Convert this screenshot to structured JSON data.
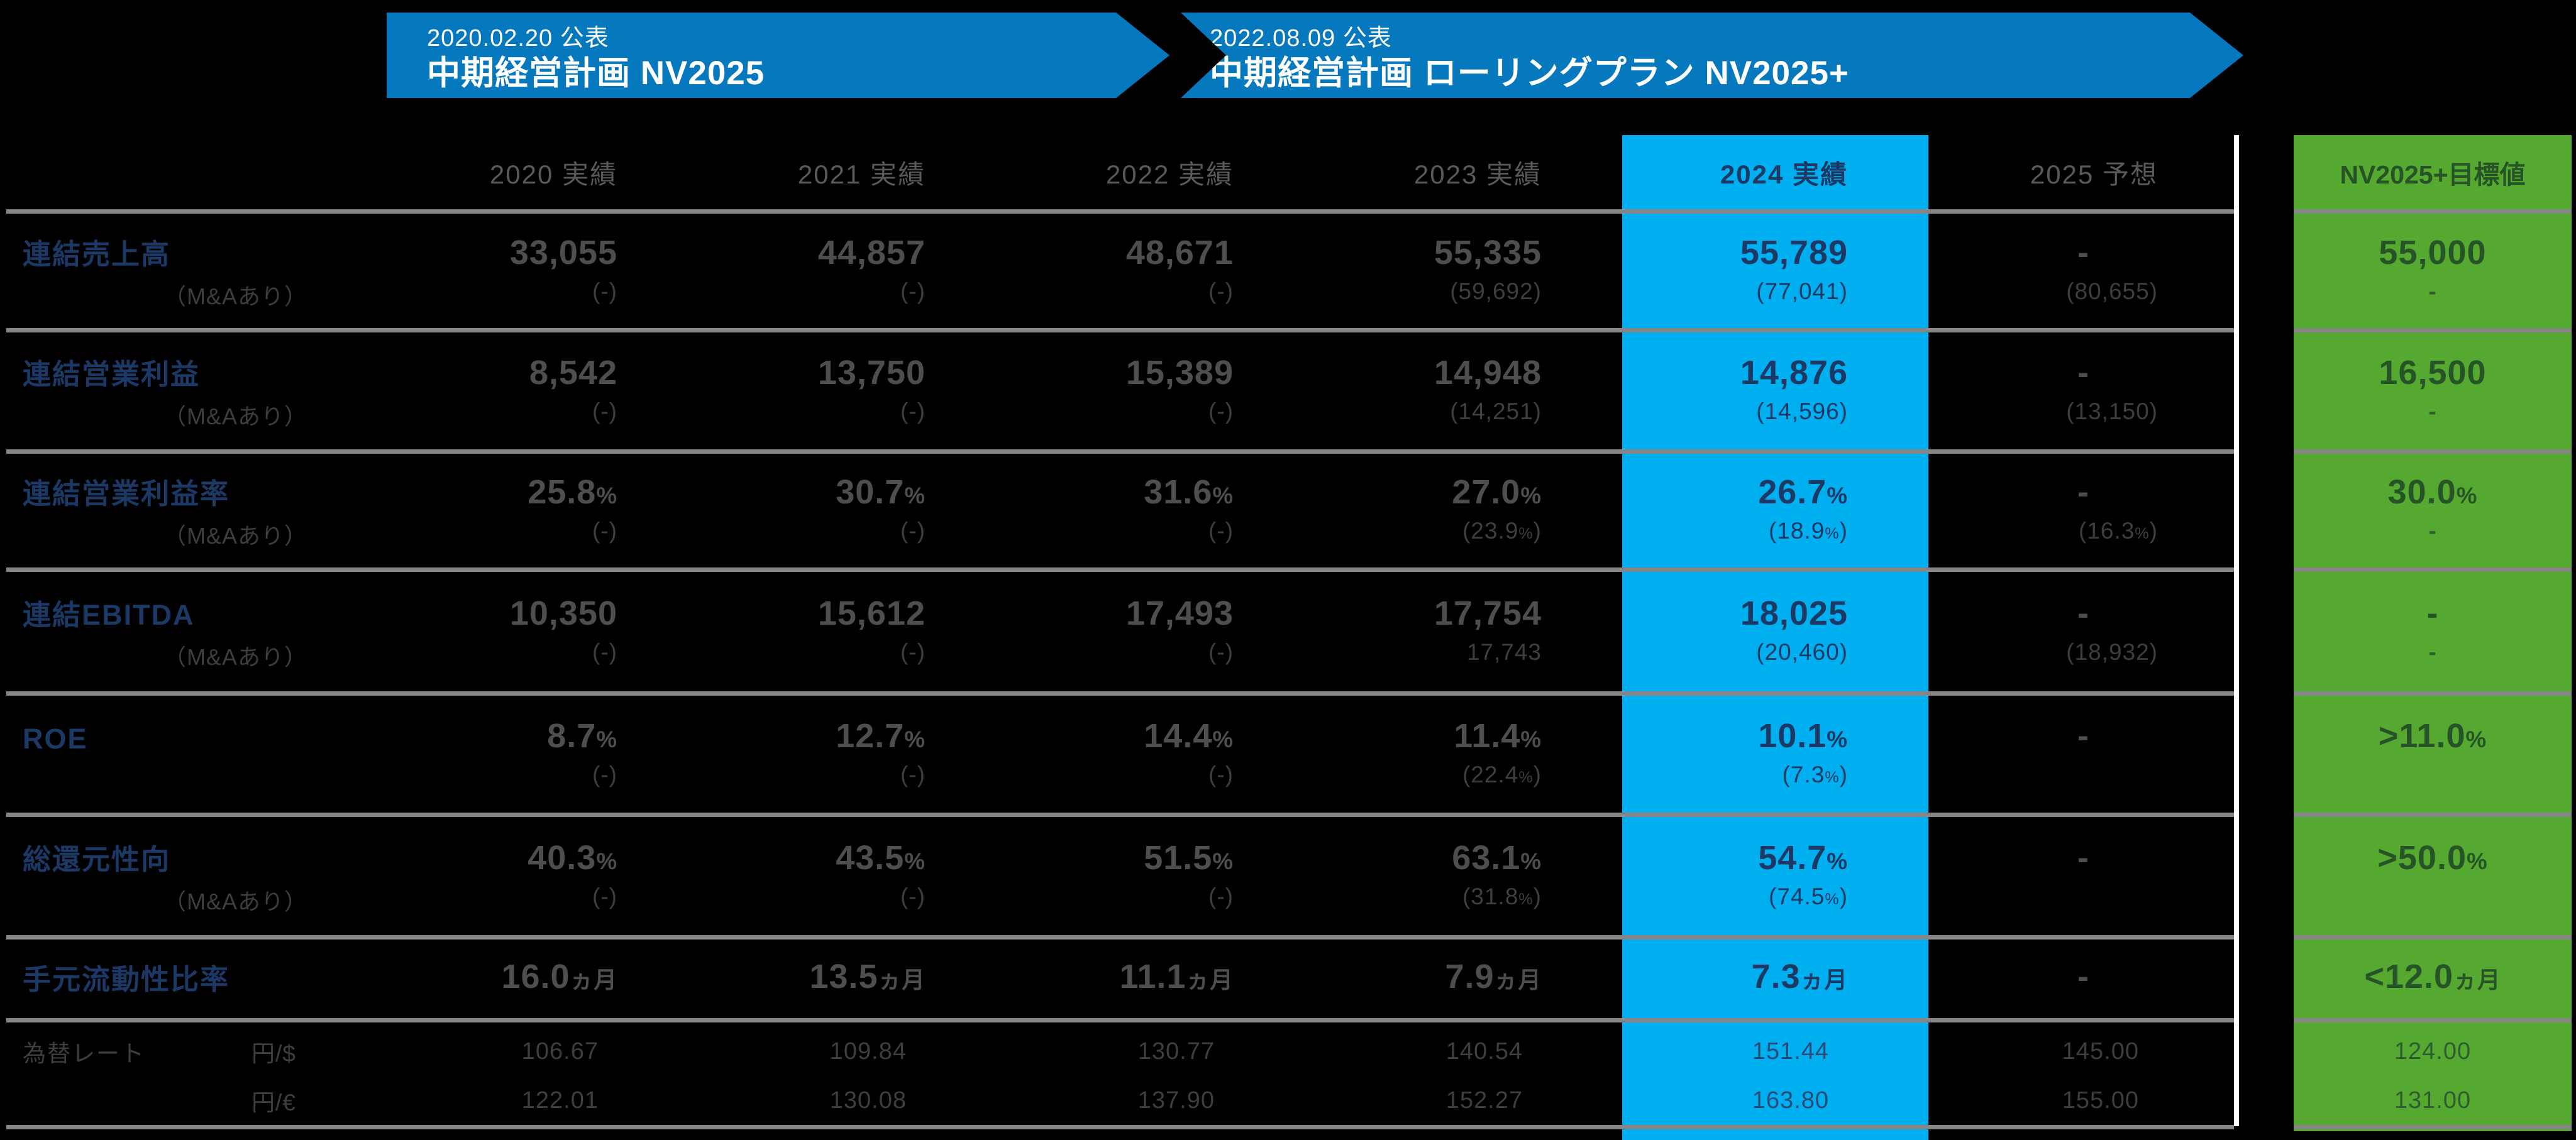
{
  "banners": [
    {
      "date": "2020.02.20 公表",
      "title": "中期経営計画 NV2025"
    },
    {
      "date": "2022.08.09 公表",
      "title": "中期経営計画 ローリングプラン NV2025+"
    }
  ],
  "table": {
    "headers": [
      "2020 実績",
      "2021 実績",
      "2022 実績",
      "2023 実績",
      "2024 実績",
      "2025 予想",
      "NV2025+目標値"
    ],
    "rows": [
      {
        "label": "連結売上高",
        "sublabel": "（M&Aあり）",
        "main": [
          "33,055",
          "44,857",
          "48,671",
          "55,335",
          "55,789",
          "-",
          "55,000"
        ],
        "sub": [
          "(-)",
          "(-)",
          "(-)",
          "(59,692)",
          "(77,041)",
          "(80,655)",
          "-"
        ]
      },
      {
        "label": "連結営業利益",
        "sublabel": "（M&Aあり）",
        "main": [
          "8,542",
          "13,750",
          "15,389",
          "14,948",
          "14,876",
          "-",
          "16,500"
        ],
        "sub": [
          "(-)",
          "(-)",
          "(-)",
          "(14,251)",
          "(14,596)",
          "(13,150)",
          "-"
        ]
      },
      {
        "label": "連結営業利益率",
        "sublabel": "（M&Aあり）",
        "main": [
          "25.8%",
          "30.7%",
          "31.6%",
          "27.0%",
          "26.7%",
          "-",
          "30.0%"
        ],
        "sub": [
          "(-)",
          "(-)",
          "(-)",
          "(23.9%)",
          "(18.9%)",
          "(16.3%)",
          "-"
        ]
      },
      {
        "label": "連結EBITDA",
        "sublabel": "（M&Aあり）",
        "main": [
          "10,350",
          "15,612",
          "17,493",
          "17,754",
          "18,025",
          "-",
          "-"
        ],
        "sub": [
          "(-)",
          "(-)",
          "(-)",
          "17,743",
          "(20,460)",
          "(18,932)",
          "-"
        ]
      },
      {
        "label": "ROE",
        "sublabel": "",
        "main": [
          "8.7%",
          "12.7%",
          "14.4%",
          "11.4%",
          "10.1%",
          "-",
          ">11.0%"
        ],
        "sub": [
          "(-)",
          "(-)",
          "(-)",
          "(22.4%)",
          "(7.3%)",
          "",
          ""
        ]
      },
      {
        "label": "総還元性向",
        "sublabel": "（M&Aあり）",
        "main": [
          "40.3%",
          "43.5%",
          "51.5%",
          "63.1%",
          "54.7%",
          "-",
          ">50.0%"
        ],
        "sub": [
          "(-)",
          "(-)",
          "(-)",
          "(31.8%)",
          "(74.5%)",
          "",
          ""
        ]
      },
      {
        "label": "手元流動性比率",
        "sublabel": "",
        "main": [
          "16.0ヵ月",
          "13.5ヵ月",
          "11.1ヵ月",
          "7.9ヵ月",
          "7.3ヵ月",
          "-",
          "<12.0ヵ月"
        ]
      }
    ],
    "fx": {
      "label": "為替レート",
      "lines": [
        {
          "unit": "円/$",
          "values": [
            "106.67",
            "109.84",
            "130.77",
            "140.54",
            "151.44",
            "145.00",
            "124.00"
          ]
        },
        {
          "unit": "円/€",
          "values": [
            "122.01",
            "130.08",
            "137.90",
            "152.27",
            "163.80",
            "155.00",
            "131.00"
          ]
        }
      ]
    }
  },
  "colors": {
    "background": "#000000",
    "banner-blue": "#0678BE",
    "highlight-cyan": "#00AFEF",
    "target-green": "#55A830",
    "navy": "#1C3966",
    "green-text": "#265426",
    "green-subtext": "#2F5C2F",
    "header-gray": "#595959",
    "value-gray": "#4E4E4E",
    "sub-gray": "#3E3E3E",
    "line-gray": "#868686",
    "white": "#FFFFFF"
  }
}
